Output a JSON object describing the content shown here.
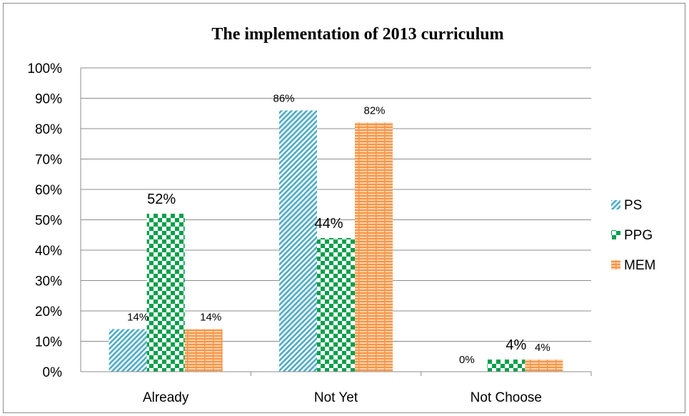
{
  "chart_data": {
    "type": "bar",
    "title": "The implementation of 2013 curriculum",
    "categories": [
      "Already",
      "Not Yet",
      "Not Choose"
    ],
    "series": [
      {
        "name": "PS",
        "values": [
          14,
          86,
          0
        ],
        "labels": [
          "14%",
          "86%",
          "0%"
        ],
        "color": "#4bacc6",
        "pattern": "diagonal"
      },
      {
        "name": "PPG",
        "values": [
          52,
          44,
          4
        ],
        "labels": [
          "52%",
          "44%",
          "4%"
        ],
        "color": "#00a04b",
        "pattern": "checker"
      },
      {
        "name": "MEM",
        "values": [
          14,
          82,
          4
        ],
        "labels": [
          "14%",
          "82%",
          "4%"
        ],
        "color": "#f79646",
        "pattern": "brick"
      }
    ],
    "ylim": [
      0,
      100
    ],
    "yticks": [
      "0%",
      "10%",
      "20%",
      "30%",
      "40%",
      "50%",
      "60%",
      "70%",
      "80%",
      "90%",
      "100%"
    ],
    "xlabel": "",
    "ylabel": "",
    "grid": true,
    "legend_position": "right"
  }
}
